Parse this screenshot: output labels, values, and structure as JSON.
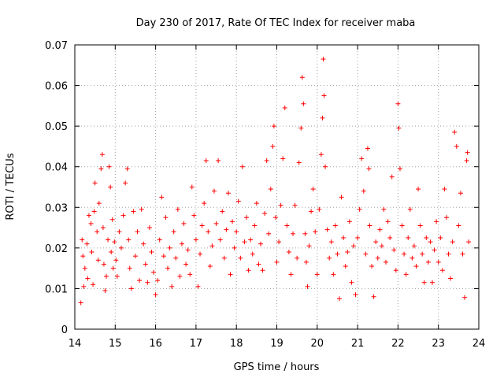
{
  "chart_data": {
    "type": "scatter",
    "title": "Day 230 of 2017, Rate Of TEC Index for receiver maba",
    "xlabel": "GPS time / hours",
    "ylabel": "ROTI / TECUs",
    "xlim": [
      14,
      24
    ],
    "ylim": [
      0,
      0.07
    ],
    "x_ticks": [
      "14",
      "15",
      "16",
      "17",
      "18",
      "19",
      "20",
      "21",
      "22",
      "23",
      "24"
    ],
    "y_ticks": [
      "0",
      "0.01",
      "0.02",
      "0.03",
      "0.04",
      "0.05",
      "0.06",
      "0.07"
    ],
    "grid": true,
    "marker": "+",
    "color": "#ff0000",
    "series": [
      {
        "points": [
          [
            14.15,
            0.0065
          ],
          [
            14.18,
            0.022
          ],
          [
            14.2,
            0.018
          ],
          [
            14.22,
            0.0105
          ],
          [
            14.25,
            0.015
          ],
          [
            14.3,
            0.021
          ],
          [
            14.32,
            0.0125
          ],
          [
            14.35,
            0.028
          ],
          [
            14.4,
            0.026
          ],
          [
            14.42,
            0.019
          ],
          [
            14.45,
            0.011
          ],
          [
            14.48,
            0.029
          ],
          [
            14.5,
            0.036
          ],
          [
            14.55,
            0.024
          ],
          [
            14.58,
            0.017
          ],
          [
            14.6,
            0.031
          ],
          [
            14.65,
            0.0395
          ],
          [
            14.68,
            0.043
          ],
          [
            14.7,
            0.025
          ],
          [
            14.72,
            0.016
          ],
          [
            14.75,
            0.0095
          ],
          [
            14.78,
            0.013
          ],
          [
            14.82,
            0.022
          ],
          [
            14.85,
            0.04
          ],
          [
            14.88,
            0.035
          ],
          [
            14.9,
            0.019
          ],
          [
            14.93,
            0.027
          ],
          [
            14.95,
            0.015
          ],
          [
            14.98,
            0.0215
          ],
          [
            15.02,
            0.017
          ],
          [
            15.05,
            0.013
          ],
          [
            15.1,
            0.024
          ],
          [
            15.15,
            0.02
          ],
          [
            15.2,
            0.028
          ],
          [
            15.25,
            0.036
          ],
          [
            15.3,
            0.0395
          ],
          [
            15.33,
            0.022
          ],
          [
            15.36,
            0.015
          ],
          [
            15.4,
            0.01
          ],
          [
            15.45,
            0.029
          ],
          [
            15.5,
            0.018
          ],
          [
            15.55,
            0.024
          ],
          [
            15.6,
            0.012
          ],
          [
            15.65,
            0.0295
          ],
          [
            15.7,
            0.021
          ],
          [
            15.75,
            0.016
          ],
          [
            15.8,
            0.0115
          ],
          [
            15.85,
            0.025
          ],
          [
            15.9,
            0.019
          ],
          [
            15.95,
            0.014
          ],
          [
            16.0,
            0.0085
          ],
          [
            16.05,
            0.012
          ],
          [
            16.1,
            0.022
          ],
          [
            16.15,
            0.0325
          ],
          [
            16.2,
            0.018
          ],
          [
            16.25,
            0.0275
          ],
          [
            16.3,
            0.015
          ],
          [
            16.35,
            0.02
          ],
          [
            16.4,
            0.0105
          ],
          [
            16.45,
            0.024
          ],
          [
            16.5,
            0.0175
          ],
          [
            16.55,
            0.0295
          ],
          [
            16.6,
            0.013
          ],
          [
            16.65,
            0.021
          ],
          [
            16.7,
            0.026
          ],
          [
            16.75,
            0.016
          ],
          [
            16.8,
            0.0195
          ],
          [
            16.85,
            0.0135
          ],
          [
            16.9,
            0.035
          ],
          [
            16.95,
            0.028
          ],
          [
            17.0,
            0.022
          ],
          [
            17.05,
            0.0105
          ],
          [
            17.1,
            0.0185
          ],
          [
            17.15,
            0.0255
          ],
          [
            17.2,
            0.031
          ],
          [
            17.25,
            0.0415
          ],
          [
            17.3,
            0.024
          ],
          [
            17.35,
            0.0155
          ],
          [
            17.4,
            0.0205
          ],
          [
            17.45,
            0.034
          ],
          [
            17.5,
            0.026
          ],
          [
            17.55,
            0.0415
          ],
          [
            17.6,
            0.022
          ],
          [
            17.65,
            0.029
          ],
          [
            17.7,
            0.0175
          ],
          [
            17.75,
            0.0245
          ],
          [
            17.8,
            0.0335
          ],
          [
            17.85,
            0.0135
          ],
          [
            17.9,
            0.0265
          ],
          [
            17.95,
            0.02
          ],
          [
            18.0,
            0.024
          ],
          [
            18.05,
            0.0315
          ],
          [
            18.1,
            0.0175
          ],
          [
            18.15,
            0.04
          ],
          [
            18.2,
            0.0215
          ],
          [
            18.25,
            0.0275
          ],
          [
            18.3,
            0.0145
          ],
          [
            18.35,
            0.022
          ],
          [
            18.4,
            0.0185
          ],
          [
            18.45,
            0.0255
          ],
          [
            18.5,
            0.031
          ],
          [
            18.55,
            0.016
          ],
          [
            18.6,
            0.021
          ],
          [
            18.65,
            0.0145
          ],
          [
            18.7,
            0.0285
          ],
          [
            18.75,
            0.0415
          ],
          [
            18.8,
            0.0235
          ],
          [
            18.85,
            0.0345
          ],
          [
            18.9,
            0.045
          ],
          [
            18.93,
            0.05
          ],
          [
            18.97,
            0.0275
          ],
          [
            19.0,
            0.0165
          ],
          [
            19.05,
            0.0215
          ],
          [
            19.1,
            0.0305
          ],
          [
            19.15,
            0.042
          ],
          [
            19.2,
            0.0545
          ],
          [
            19.25,
            0.0255
          ],
          [
            19.3,
            0.019
          ],
          [
            19.35,
            0.0135
          ],
          [
            19.4,
            0.0235
          ],
          [
            19.45,
            0.0305
          ],
          [
            19.5,
            0.0175
          ],
          [
            19.55,
            0.041
          ],
          [
            19.6,
            0.0495
          ],
          [
            19.63,
            0.062
          ],
          [
            19.66,
            0.0555
          ],
          [
            19.7,
            0.0235
          ],
          [
            19.73,
            0.0165
          ],
          [
            19.76,
            0.0105
          ],
          [
            19.8,
            0.0205
          ],
          [
            19.85,
            0.029
          ],
          [
            19.9,
            0.0345
          ],
          [
            19.95,
            0.024
          ],
          [
            20.0,
            0.0135
          ],
          [
            20.05,
            0.0295
          ],
          [
            20.1,
            0.043
          ],
          [
            20.13,
            0.052
          ],
          [
            20.15,
            0.0665
          ],
          [
            20.17,
            0.0575
          ],
          [
            20.2,
            0.04
          ],
          [
            20.25,
            0.0245
          ],
          [
            20.3,
            0.0175
          ],
          [
            20.35,
            0.0215
          ],
          [
            20.4,
            0.0135
          ],
          [
            20.45,
            0.0255
          ],
          [
            20.5,
            0.0185
          ],
          [
            20.55,
            0.0075
          ],
          [
            20.6,
            0.0325
          ],
          [
            20.65,
            0.0225
          ],
          [
            20.7,
            0.0155
          ],
          [
            20.75,
            0.019
          ],
          [
            20.8,
            0.0265
          ],
          [
            20.85,
            0.0115
          ],
          [
            20.9,
            0.0205
          ],
          [
            20.95,
            0.0085
          ],
          [
            21.0,
            0.0225
          ],
          [
            21.05,
            0.0295
          ],
          [
            21.1,
            0.042
          ],
          [
            21.15,
            0.034
          ],
          [
            21.2,
            0.0185
          ],
          [
            21.25,
            0.0445
          ],
          [
            21.28,
            0.0395
          ],
          [
            21.3,
            0.0255
          ],
          [
            21.35,
            0.0155
          ],
          [
            21.4,
            0.008
          ],
          [
            21.45,
            0.0215
          ],
          [
            21.5,
            0.0175
          ],
          [
            21.55,
            0.0245
          ],
          [
            21.6,
            0.0205
          ],
          [
            21.65,
            0.0295
          ],
          [
            21.7,
            0.0165
          ],
          [
            21.75,
            0.0265
          ],
          [
            21.8,
            0.0225
          ],
          [
            21.85,
            0.0375
          ],
          [
            21.9,
            0.0195
          ],
          [
            21.95,
            0.0145
          ],
          [
            22.0,
            0.0555
          ],
          [
            22.02,
            0.0495
          ],
          [
            22.05,
            0.0395
          ],
          [
            22.1,
            0.0255
          ],
          [
            22.15,
            0.0185
          ],
          [
            22.2,
            0.0135
          ],
          [
            22.25,
            0.0225
          ],
          [
            22.3,
            0.0295
          ],
          [
            22.35,
            0.0175
          ],
          [
            22.4,
            0.0205
          ],
          [
            22.45,
            0.0155
          ],
          [
            22.5,
            0.0345
          ],
          [
            22.55,
            0.0255
          ],
          [
            22.6,
            0.0185
          ],
          [
            22.65,
            0.0115
          ],
          [
            22.7,
            0.0225
          ],
          [
            22.75,
            0.0165
          ],
          [
            22.8,
            0.0215
          ],
          [
            22.85,
            0.0115
          ],
          [
            22.9,
            0.0195
          ],
          [
            22.95,
            0.0265
          ],
          [
            23.0,
            0.0165
          ],
          [
            23.05,
            0.0225
          ],
          [
            23.1,
            0.0145
          ],
          [
            23.15,
            0.0345
          ],
          [
            23.2,
            0.0275
          ],
          [
            23.25,
            0.0185
          ],
          [
            23.3,
            0.0125
          ],
          [
            23.35,
            0.0215
          ],
          [
            23.4,
            0.0485
          ],
          [
            23.45,
            0.045
          ],
          [
            23.5,
            0.0255
          ],
          [
            23.55,
            0.0335
          ],
          [
            23.6,
            0.0185
          ],
          [
            23.65,
            0.0078
          ],
          [
            23.7,
            0.0415
          ],
          [
            23.72,
            0.0435
          ],
          [
            23.75,
            0.0215
          ]
        ]
      }
    ]
  }
}
